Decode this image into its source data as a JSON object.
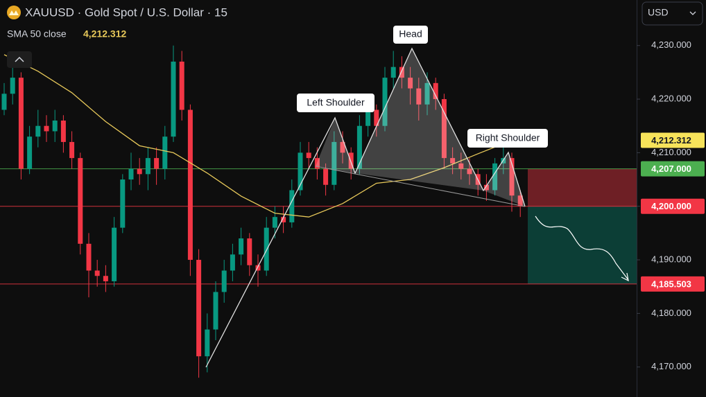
{
  "chart_data": {
    "type": "candlestick",
    "title": "XAUUSD · Gold Spot / U.S. Dollar · 15",
    "currency": "USD",
    "up_color": "#089981",
    "down_color": "#f23645",
    "ylim": [
      4164.4,
      4238.5
    ],
    "yticks": [
      {
        "value": 4170,
        "label": "4,170.000"
      },
      {
        "value": 4180,
        "label": "4,180.000"
      },
      {
        "value": 4190,
        "label": "4,190.000"
      },
      {
        "value": 4200,
        "label": "4,200.000"
      },
      {
        "value": 4210,
        "label": "4,210.000"
      },
      {
        "value": 4220,
        "label": "4,220.000"
      },
      {
        "value": 4230,
        "label": "4,230.000"
      }
    ],
    "candles": {
      "open": [
        4218,
        4221,
        4224,
        4207,
        4213,
        4215,
        4214,
        4216,
        4212,
        4209,
        4193,
        4188,
        4187,
        4186,
        4196,
        4205,
        4207,
        4206,
        4209,
        4207,
        4213,
        4227,
        4218,
        4190,
        4172,
        4177,
        4184,
        4188,
        4191,
        4194,
        4189,
        4188,
        4196,
        4198,
        4197,
        4203,
        4210,
        4209,
        4207,
        4204,
        4212,
        4210,
        4207,
        4215,
        4218,
        4215,
        4224,
        4226,
        4224,
        4222,
        4219,
        4223,
        4220,
        4209,
        4208,
        4207,
        4206,
        4204,
        4203,
        4208,
        4209,
        4202
      ],
      "high": [
        4223,
        4226,
        4225,
        4215,
        4218,
        4217,
        4218,
        4217,
        4214,
        4210,
        4195,
        4190,
        4189,
        4198,
        4206,
        4210,
        4209,
        4211,
        4211,
        4215,
        4230,
        4229,
        4219,
        4192,
        4180,
        4186,
        4190,
        4193,
        4196,
        4195,
        4191,
        4198,
        4200,
        4200,
        4205,
        4212,
        4212,
        4211,
        4208,
        4214,
        4214,
        4211,
        4217,
        4220,
        4219,
        4226,
        4229,
        4228,
        4226,
        4224,
        4225,
        4224,
        4221,
        4211,
        4210,
        4209,
        4207,
        4206,
        4209,
        4211,
        4210,
        4203
      ],
      "low": [
        4217,
        4219,
        4205,
        4206,
        4211,
        4212,
        4212,
        4210,
        4207,
        4191,
        4183,
        4185,
        4184,
        4185,
        4195,
        4203,
        4204,
        4203,
        4204,
        4205,
        4212,
        4216,
        4187,
        4168,
        4169,
        4175,
        4182,
        4186,
        4189,
        4187,
        4185,
        4187,
        4194,
        4195,
        4196,
        4202,
        4207,
        4205,
        4202,
        4203,
        4208,
        4205,
        4206,
        4213,
        4213,
        4214,
        4222,
        4222,
        4219,
        4216,
        4217,
        4218,
        4207,
        4206,
        4205,
        4204,
        4202,
        4201,
        4202,
        4206,
        4199,
        4198
      ],
      "close": [
        4221,
        4224,
        4207,
        4213,
        4215,
        4214,
        4216,
        4212,
        4209,
        4193,
        4188,
        4187,
        4186,
        4196,
        4205,
        4207,
        4206,
        4209,
        4207,
        4213,
        4227,
        4218,
        4190,
        4172,
        4177,
        4184,
        4188,
        4191,
        4194,
        4189,
        4188,
        4196,
        4198,
        4197,
        4203,
        4210,
        4209,
        4207,
        4204,
        4212,
        4210,
        4207,
        4215,
        4218,
        4215,
        4224,
        4226,
        4224,
        4222,
        4219,
        4223,
        4220,
        4209,
        4208,
        4207,
        4206,
        4204,
        4203,
        4208,
        4209,
        4202,
        4200
      ]
    },
    "sma": {
      "name": "SMA 50 close",
      "color": "#e8c95a",
      "x": [
        0,
        4,
        8,
        12,
        16,
        20,
        24,
        28,
        32,
        36,
        40,
        44,
        48,
        52,
        56,
        60
      ],
      "values": [
        4228.3,
        4225.2,
        4221.2,
        4215.8,
        4211.3,
        4210.0,
        4206.2,
        4201.9,
        4198.7,
        4198.0,
        4200.5,
        4204.3,
        4205.0,
        4207.2,
        4209.8,
        4212.3
      ],
      "last": {
        "value": 4212.312,
        "label": "4,212.312"
      }
    },
    "price_levels": [
      {
        "value": 4207,
        "label": "4,207.000",
        "color": "#4caf50"
      },
      {
        "value": 4200,
        "label": "4,200.000",
        "color": "#f23645"
      },
      {
        "value": 4185.503,
        "label": "4,185.503",
        "color": "#f23645"
      }
    ],
    "annotations": [
      "Left Shoulder",
      "Head",
      "Right Shoulder"
    ]
  }
}
